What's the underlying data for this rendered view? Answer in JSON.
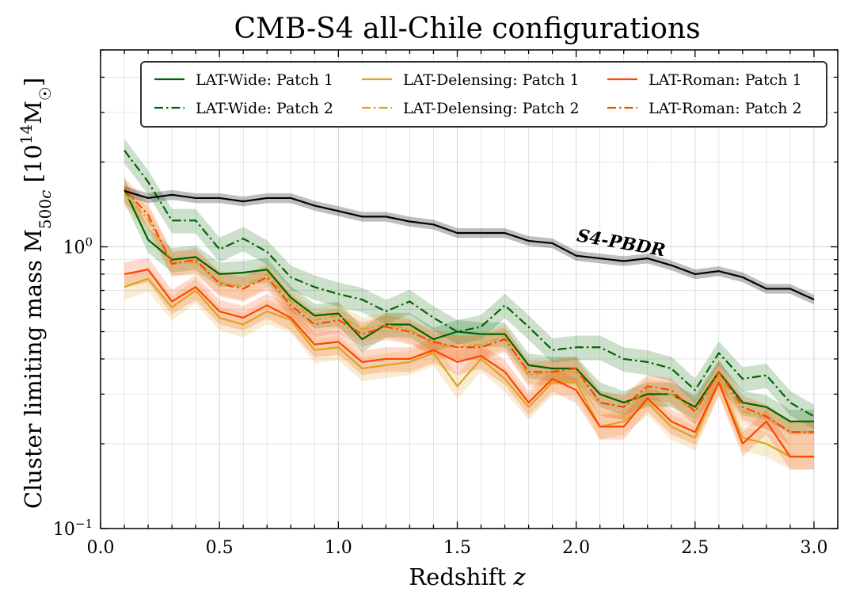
{
  "chart_data": {
    "type": "line",
    "title": "CMB-S4 all-Chile configurations",
    "xlabel": "Redshift z",
    "ylabel": "Cluster limiting mass M500c [10^14 M☉]",
    "xlim": [
      0.0,
      3.1
    ],
    "ylim": [
      0.1,
      5.0
    ],
    "y_scale": "log",
    "grid": true,
    "legend_position": "top-right",
    "x_ticks": [
      "0.0",
      "0.5",
      "1.0",
      "1.5",
      "2.0",
      "2.5",
      "3.0"
    ],
    "y_ticks": [
      "10^-1",
      "10^0"
    ],
    "x": [
      0.1,
      0.2,
      0.3,
      0.4,
      0.5,
      0.6,
      0.7,
      0.8,
      0.9,
      1.0,
      1.1,
      1.2,
      1.3,
      1.4,
      1.5,
      1.6,
      1.7,
      1.8,
      1.9,
      2.0,
      2.1,
      2.2,
      2.3,
      2.4,
      2.5,
      2.6,
      2.7,
      2.8,
      2.9,
      3.0
    ],
    "series": [
      {
        "name": "LAT-Wide: Patch 1",
        "color": "#006400",
        "dash": "solid",
        "values": [
          1.6,
          1.06,
          0.9,
          0.92,
          0.8,
          0.81,
          0.83,
          0.66,
          0.57,
          0.58,
          0.47,
          0.53,
          0.53,
          0.47,
          0.5,
          0.49,
          0.49,
          0.38,
          0.37,
          0.37,
          0.3,
          0.28,
          0.3,
          0.3,
          0.27,
          0.36,
          0.28,
          0.27,
          0.24,
          0.24
        ],
        "band": 0.1
      },
      {
        "name": "LAT-Wide: Patch 2",
        "color": "#006400",
        "dash": "dashdot",
        "values": [
          2.2,
          1.7,
          1.24,
          1.24,
          0.98,
          1.07,
          0.96,
          0.78,
          0.72,
          0.68,
          0.65,
          0.59,
          0.64,
          0.56,
          0.5,
          0.52,
          0.62,
          0.52,
          0.43,
          0.44,
          0.44,
          0.4,
          0.39,
          0.37,
          0.31,
          0.42,
          0.34,
          0.35,
          0.28,
          0.25
        ],
        "band": 0.1
      },
      {
        "name": "LAT-Delensing: Patch 1",
        "color": "#DAA520",
        "dash": "solid",
        "values": [
          0.72,
          0.77,
          0.61,
          0.7,
          0.56,
          0.53,
          0.59,
          0.55,
          0.43,
          0.44,
          0.37,
          0.38,
          0.39,
          0.42,
          0.32,
          0.4,
          0.34,
          0.27,
          0.33,
          0.33,
          0.23,
          0.24,
          0.28,
          0.23,
          0.21,
          0.33,
          0.21,
          0.2,
          0.18,
          0.18
        ],
        "band": 0.1
      },
      {
        "name": "LAT-Delensing: Patch 2",
        "color": "#DAA520",
        "dash": "dashdot",
        "values": [
          1.55,
          1.25,
          0.88,
          0.88,
          0.75,
          0.72,
          0.8,
          0.64,
          0.55,
          0.57,
          0.51,
          0.53,
          0.51,
          0.45,
          0.44,
          0.45,
          0.48,
          0.35,
          0.36,
          0.36,
          0.28,
          0.27,
          0.31,
          0.3,
          0.26,
          0.35,
          0.26,
          0.25,
          0.22,
          0.22
        ],
        "band": 0.1
      },
      {
        "name": "LAT-Roman: Patch 1",
        "color": "#FF4500",
        "dash": "solid",
        "values": [
          0.8,
          0.83,
          0.64,
          0.72,
          0.59,
          0.56,
          0.62,
          0.56,
          0.45,
          0.46,
          0.39,
          0.4,
          0.4,
          0.43,
          0.39,
          0.41,
          0.36,
          0.28,
          0.34,
          0.31,
          0.23,
          0.23,
          0.29,
          0.24,
          0.22,
          0.33,
          0.2,
          0.24,
          0.18,
          0.18
        ],
        "band": 0.1
      },
      {
        "name": "LAT-Roman: Patch 2",
        "color": "#FF4500",
        "dash": "dashdot",
        "values": [
          1.6,
          1.3,
          0.87,
          0.9,
          0.74,
          0.71,
          0.78,
          0.62,
          0.53,
          0.55,
          0.49,
          0.52,
          0.5,
          0.46,
          0.44,
          0.44,
          0.47,
          0.36,
          0.36,
          0.37,
          0.28,
          0.27,
          0.32,
          0.31,
          0.26,
          0.36,
          0.27,
          0.25,
          0.22,
          0.22
        ],
        "band": 0.1
      },
      {
        "name": "",
        "color": "#000000",
        "dash": "solid",
        "values": [
          1.58,
          1.49,
          1.53,
          1.49,
          1.49,
          1.45,
          1.49,
          1.49,
          1.4,
          1.34,
          1.28,
          1.28,
          1.23,
          1.2,
          1.12,
          1.12,
          1.12,
          1.05,
          1.03,
          0.93,
          0.91,
          0.89,
          0.91,
          0.86,
          0.8,
          0.82,
          0.78,
          0.71,
          0.71,
          0.65
        ],
        "band": 0.04
      }
    ],
    "annotations": [
      {
        "text": "S4-PBDR",
        "x": 2.0,
        "y": 1.05,
        "rotation": -10
      }
    ]
  }
}
